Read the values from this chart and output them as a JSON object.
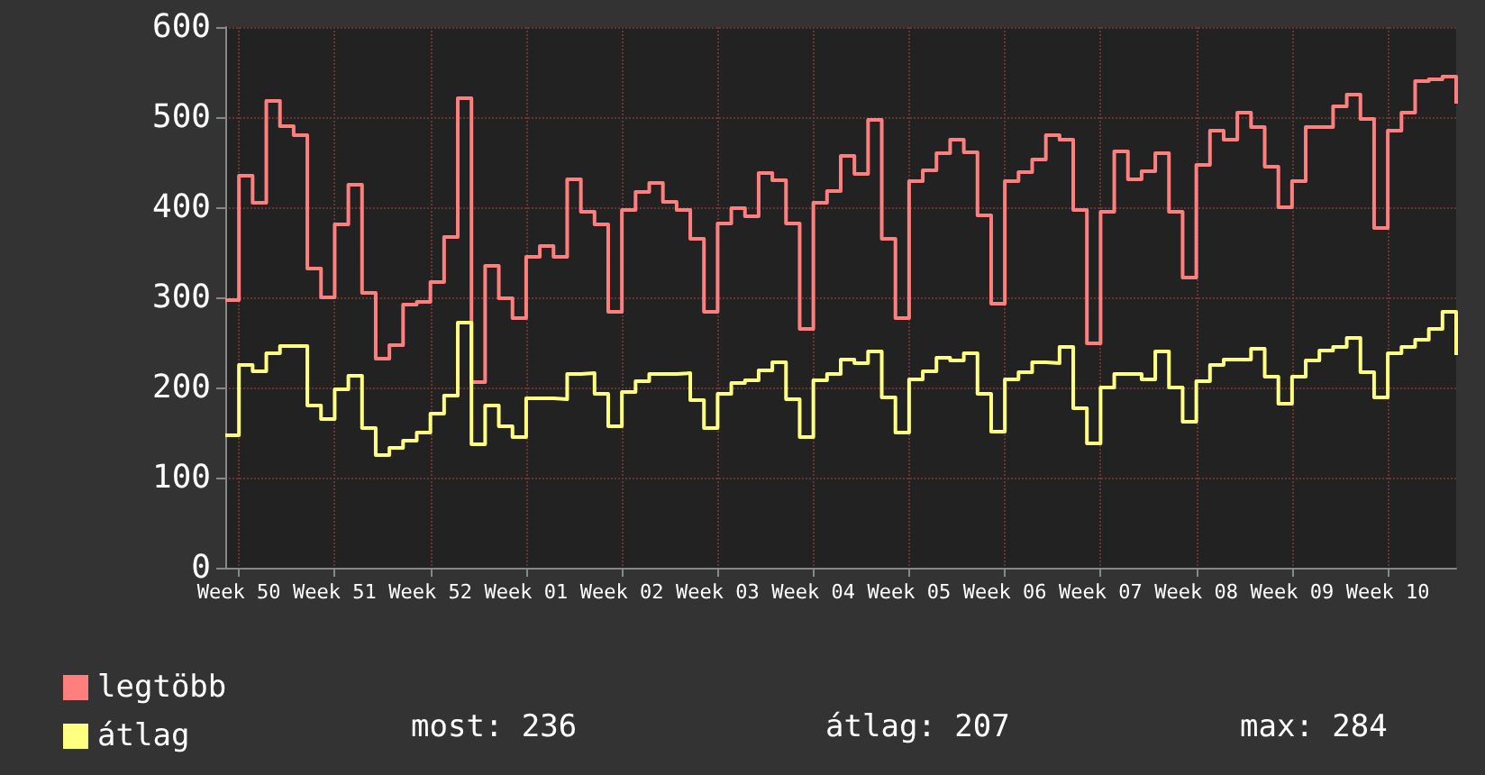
{
  "chart_data": {
    "type": "step",
    "categories": [
      null,
      "Week 50",
      null,
      null,
      null,
      null,
      null,
      null,
      "Week 51",
      null,
      null,
      null,
      null,
      null,
      null,
      "Week 52",
      null,
      null,
      null,
      null,
      null,
      null,
      "Week 01",
      null,
      null,
      null,
      null,
      null,
      null,
      "Week 02",
      null,
      null,
      null,
      null,
      null,
      null,
      "Week 03",
      null,
      null,
      null,
      null,
      null,
      null,
      "Week 04",
      null,
      null,
      null,
      null,
      null,
      null,
      "Week 05",
      null,
      null,
      null,
      null,
      null,
      null,
      "Week 06",
      null,
      null,
      null,
      null,
      null,
      null,
      "Week 07",
      null,
      null,
      null,
      null,
      null,
      null,
      "Week 08",
      null,
      null,
      null,
      null,
      null,
      null,
      "Week 09",
      null,
      null,
      null,
      null,
      null,
      null,
      "Week 10",
      null,
      null,
      null,
      null,
      null
    ],
    "series": [
      {
        "name": "legtöbb",
        "color": "#ff7f7f",
        "values": [
          297,
          435,
          405,
          518,
          490,
          480,
          332,
          300,
          381,
          425,
          305,
          232,
          247,
          292,
          295,
          317,
          367,
          521,
          206,
          335,
          299,
          277,
          345,
          357,
          345,
          431,
          395,
          381,
          284,
          397,
          417,
          427,
          406,
          397,
          365,
          284,
          382,
          399,
          390,
          438,
          430,
          382,
          265,
          405,
          418,
          457,
          437,
          497,
          365,
          277,
          429,
          441,
          460,
          475,
          461,
          391,
          293,
          429,
          439,
          453,
          480,
          475,
          397,
          249,
          395,
          462,
          431,
          440,
          460,
          395,
          322,
          447,
          485,
          475,
          505,
          489,
          445,
          400,
          429,
          489,
          489,
          512,
          525,
          498,
          377,
          485,
          505,
          540,
          542,
          545,
          515
        ]
      },
      {
        "name": "átlag",
        "color": "#ffff80",
        "values": [
          147,
          225,
          218,
          238,
          246,
          246,
          180,
          165,
          198,
          213,
          155,
          125,
          133,
          141,
          150,
          171,
          191,
          272,
          137,
          180,
          157,
          145,
          188,
          188,
          187,
          215,
          216,
          193,
          157,
          195,
          207,
          215,
          215,
          216,
          186,
          155,
          193,
          205,
          208,
          219,
          228,
          187,
          145,
          208,
          215,
          231,
          227,
          240,
          189,
          150,
          209,
          218,
          233,
          230,
          238,
          193,
          151,
          209,
          217,
          228,
          227,
          245,
          177,
          138,
          200,
          215,
          215,
          209,
          240,
          200,
          162,
          207,
          225,
          231,
          231,
          243,
          212,
          182,
          212,
          230,
          241,
          245,
          255,
          217,
          189,
          238,
          245,
          253,
          265,
          284,
          236
        ]
      }
    ],
    "ylim": [
      0,
      600
    ],
    "yticks": [
      0,
      100,
      200,
      300,
      400,
      500,
      600
    ],
    "grid": true,
    "legend": "bottom left",
    "marker": "none",
    "line_style": "solid",
    "annotations": [
      "most: 236",
      "átlag: 207",
      "max: 284"
    ]
  }
}
